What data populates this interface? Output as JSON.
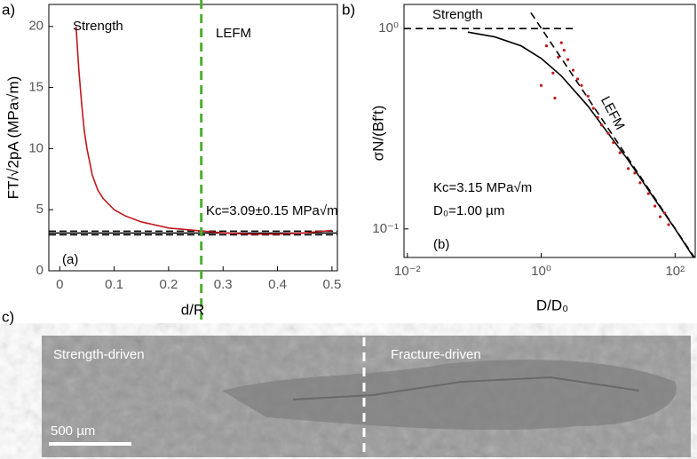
{
  "chart_data": [
    {
      "type": "line",
      "panel_label": "a)",
      "inset_label": "(a)",
      "xlabel": "d/R",
      "ylabel": "FT/√2pA (MPa√m)",
      "xlim": [
        -0.02,
        0.51
      ],
      "ylim": [
        0,
        21.8
      ],
      "xticks": [
        0,
        0.1,
        0.2,
        0.3,
        0.4,
        0.5
      ],
      "yticks": [
        0,
        5,
        10,
        15,
        20
      ],
      "annotations": [
        "Strength",
        "LEFM",
        "Kc=3.09±0.15 MPa√m"
      ],
      "hlines": [
        {
          "value": 3.09,
          "style": "solid",
          "color": "#000000"
        },
        {
          "value": 2.94,
          "style": "dashed",
          "color": "#000000"
        },
        {
          "value": 3.24,
          "style": "dashed",
          "color": "#000000"
        }
      ],
      "vline": {
        "value": 0.26,
        "color": "#4caf2f"
      },
      "series": [
        {
          "style": "solid",
          "color": "#c0171c",
          "x": [
            0.03,
            0.035,
            0.04,
            0.045,
            0.05,
            0.06,
            0.07,
            0.08,
            0.1,
            0.12,
            0.15,
            0.2,
            0.25,
            0.3,
            0.35,
            0.4,
            0.45,
            0.5
          ],
          "values": [
            20,
            16.5,
            13.8,
            11.5,
            10,
            7.8,
            6.6,
            5.9,
            5.0,
            4.5,
            4.0,
            3.5,
            3.3,
            3.1,
            3.0,
            3.0,
            3.1,
            3.3
          ]
        }
      ]
    },
    {
      "type": "line",
      "panel_label": "b)",
      "inset_label": "(b)",
      "log_x": true,
      "log_y": true,
      "xlabel": "D/D₀",
      "ylabel": "σN/(Bf′t)",
      "xlim": [
        0.0089,
        200
      ],
      "ylim": [
        0.072,
        1.32
      ],
      "xticks": [
        {
          "value": 0.01,
          "label": "10⁻²"
        },
        {
          "value": 1,
          "label": "10⁰"
        },
        {
          "value": 100,
          "label": "10²"
        }
      ],
      "yticks": [
        {
          "value": 0.1,
          "label": "10⁻¹"
        },
        {
          "value": 1,
          "label": "10⁰"
        }
      ],
      "annotations": [
        "Strength",
        "LEFM",
        "Kc=3.15 MPa√m",
        "D₀=1.00 µm"
      ],
      "series": [
        {
          "style": "dashed",
          "color": "#000000",
          "x": [
            0.0089,
            3
          ],
          "values": [
            1,
            1
          ]
        },
        {
          "style": "dashed",
          "color": "#000000",
          "x": [
            0.7,
            200
          ],
          "values": [
            1.2,
            0.071
          ]
        },
        {
          "style": "solid",
          "color": "#000000",
          "x": [
            0.08,
            0.2,
            0.5,
            1,
            2,
            5,
            10,
            20,
            50,
            100,
            200
          ],
          "values": [
            0.96,
            0.91,
            0.82,
            0.71,
            0.58,
            0.41,
            0.3,
            0.22,
            0.14,
            0.1,
            0.07
          ]
        },
        {
          "style": "markers",
          "color": "#c0171c",
          "x": [
            1.0,
            1.2,
            1.5,
            1.6,
            1.8,
            2.0,
            2.2,
            2.5,
            3,
            3.5,
            4,
            5,
            6,
            7,
            8,
            10,
            12,
            15,
            20,
            25,
            30,
            40,
            50,
            60,
            70,
            80
          ],
          "values": [
            0.52,
            0.82,
            0.6,
            0.45,
            0.72,
            0.85,
            0.78,
            0.7,
            0.62,
            0.56,
            0.52,
            0.46,
            0.4,
            0.36,
            0.33,
            0.3,
            0.27,
            0.24,
            0.2,
            0.19,
            0.17,
            0.15,
            0.13,
            0.115,
            0.12,
            0.105
          ]
        }
      ]
    }
  ],
  "micrograph": {
    "panel_label": "c)",
    "left_text": "Strength-driven",
    "right_text": "Fracture-driven",
    "scale_bar": "500 µm"
  }
}
